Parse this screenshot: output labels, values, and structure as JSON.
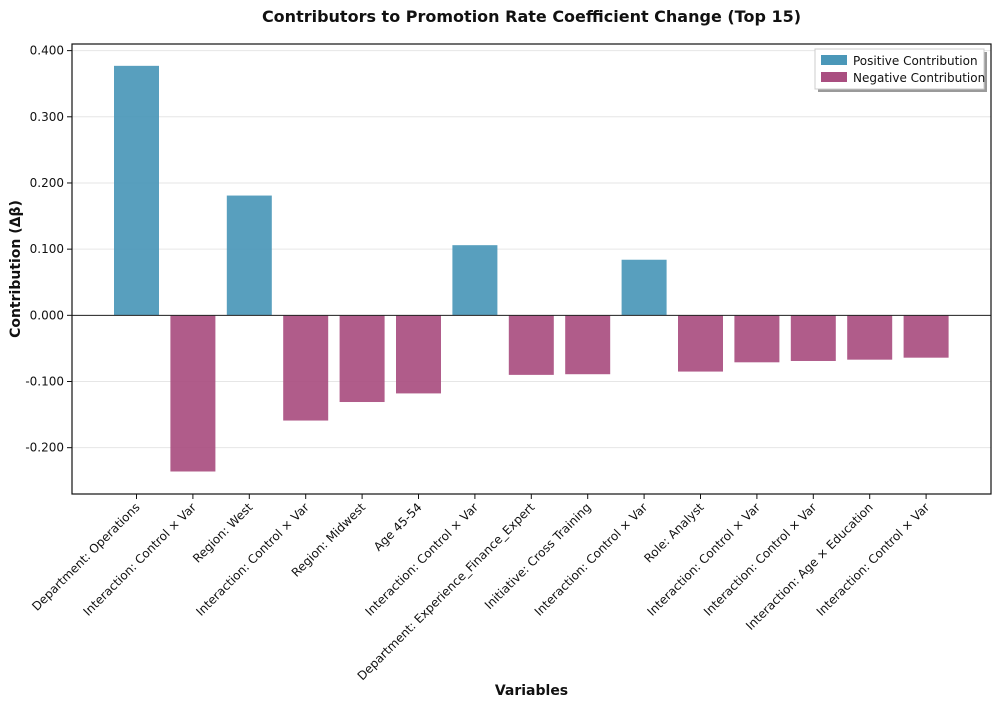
{
  "chart_data": {
    "type": "bar",
    "title": "Contributors to Promotion Rate Coefficient Change (Top 15)",
    "xlabel": "Variables",
    "ylabel": "Contribution (Δβ)",
    "ylim": [
      -0.27,
      0.41
    ],
    "yticks": [
      -0.2,
      -0.1,
      0.0,
      0.1,
      0.2,
      0.3,
      0.4
    ],
    "ytick_labels": [
      "-0.200",
      "-0.100",
      "0.000",
      "0.100",
      "0.200",
      "0.300",
      "0.400"
    ],
    "grid": true,
    "legend_position": "top-right",
    "categories": [
      "Department: Operations",
      "Interaction: Control × Var",
      "Region: West",
      "Interaction: Control × Var",
      "Region: Midwest",
      "Age 45-54",
      "Interaction: Control × Var",
      "Department: Experience_Finance_Expert",
      "Initiative: Cross Training",
      "Interaction: Control × Var",
      "Role: Analyst",
      "Interaction: Control × Var",
      "Interaction: Control × Var",
      "Interaction: Age × Education",
      "Interaction: Control × Var"
    ],
    "values": [
      0.377,
      -0.236,
      0.181,
      -0.159,
      -0.131,
      -0.118,
      0.106,
      -0.09,
      -0.089,
      0.084,
      -0.085,
      -0.071,
      -0.069,
      -0.067,
      -0.064
    ],
    "legend": [
      {
        "label": "Positive Contribution",
        "color": "#4a97b8"
      },
      {
        "label": "Negative Contribution",
        "color": "#a94e80"
      }
    ],
    "colors": {
      "positive": "#4a97b8",
      "negative": "#a94e80"
    }
  }
}
